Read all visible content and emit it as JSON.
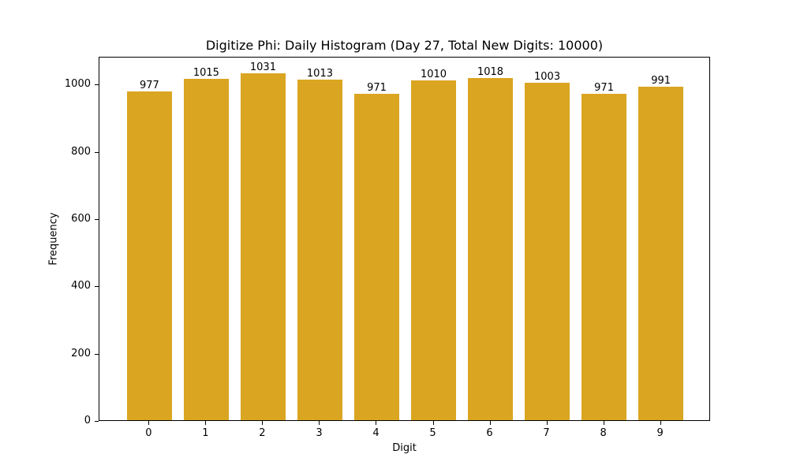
{
  "chart_data": {
    "type": "bar",
    "title": "Digitize Phi: Daily Histogram (Day 27, Total New Digits: 10000)",
    "xlabel": "Digit",
    "ylabel": "Frequency",
    "categories": [
      "0",
      "1",
      "2",
      "3",
      "4",
      "5",
      "6",
      "7",
      "8",
      "9"
    ],
    "values": [
      977,
      1015,
      1031,
      1013,
      971,
      1010,
      1018,
      1003,
      971,
      991
    ],
    "yticks": [
      0,
      200,
      400,
      600,
      800,
      1000
    ],
    "ylim": [
      0,
      1082.5
    ],
    "bar_color": "#DAA520",
    "grid": false,
    "legend": null
  }
}
